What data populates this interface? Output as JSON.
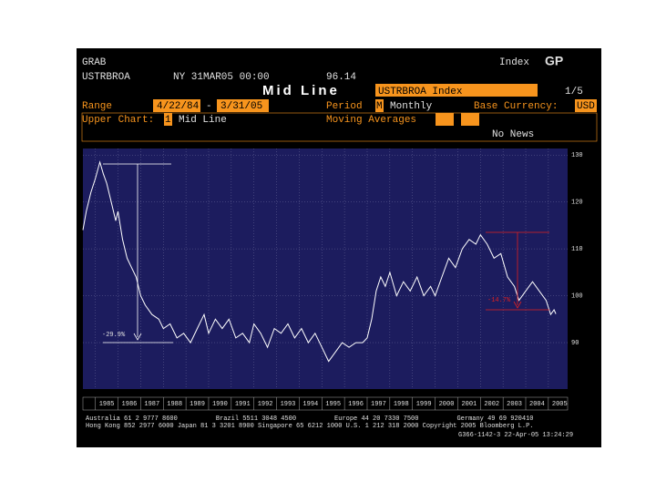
{
  "header": {
    "function": "GRAB",
    "security_type": "Index",
    "function_code": "GP",
    "ticker": "USTRBROA",
    "timestamp": "NY 31MAR05 00:00",
    "last": "96.14",
    "chart_name": "Mid Line",
    "security": "USTRBROA Index",
    "page": "1/5",
    "range_label": "Range",
    "range_start": "4/22/84",
    "range_sep": "-",
    "range_end": "3/31/05",
    "period_label": "Period",
    "period_code": "M",
    "period": "Monthly",
    "currency_label": "Base Currency:",
    "currency": "USD",
    "upper_label": "Upper Chart:",
    "upper_num": "1",
    "upper_name": "Mid Line",
    "ma_label": "Moving Averages",
    "news": "No News"
  },
  "footer": [
    "Australia 61 2 9777 8600          Brazil 5511 3048 4500          Europe 44 20 7330 7500          Germany 49 69 920410",
    "Hong Kong 852 2977 6000 Japan 81 3 3201 8900 Singapore 65 6212 1000 U.S. 1 212 318 2000 Copyright 2005 Bloomberg L.P.",
    "G366-1142-3 22-Apr-05 13:24:29"
  ],
  "chart_data": {
    "type": "line",
    "color": "#ffffff",
    "grid": true,
    "annotations": [
      "-29.9%",
      "-14.7%"
    ],
    "x": [
      1984.45,
      1984.6,
      1984.8,
      1985.0,
      1985.2,
      1985.35,
      1985.5,
      1985.7,
      1985.9,
      1986.0,
      1986.2,
      1986.4,
      1986.6,
      1986.8,
      1987.0,
      1987.2,
      1987.5,
      1987.8,
      1988.0,
      1988.3,
      1988.6,
      1988.9,
      1989.2,
      1989.5,
      1989.8,
      1990.0,
      1990.3,
      1990.6,
      1990.9,
      1991.2,
      1991.5,
      1991.8,
      1992.0,
      1992.3,
      1992.6,
      1992.9,
      1993.2,
      1993.5,
      1993.8,
      1994.1,
      1994.4,
      1994.7,
      1995.0,
      1995.3,
      1995.6,
      1995.9,
      1996.2,
      1996.5,
      1996.8,
      1997.0,
      1997.2,
      1997.4,
      1997.6,
      1997.8,
      1998.0,
      1998.3,
      1998.6,
      1998.9,
      1999.2,
      1999.5,
      1999.8,
      2000.0,
      2000.3,
      2000.6,
      2000.9,
      2001.2,
      2001.5,
      2001.8,
      2002.0,
      2002.3,
      2002.6,
      2002.9,
      2003.2,
      2003.5,
      2003.7,
      2004.0,
      2004.3,
      2004.6,
      2004.9,
      2005.1,
      2005.25,
      2005.33
    ],
    "values": [
      114,
      118,
      122,
      125,
      128.5,
      126,
      124,
      120,
      116,
      118,
      112,
      108,
      106,
      104,
      100,
      98,
      96,
      95,
      93,
      94,
      91,
      92,
      90,
      93,
      96,
      92,
      95,
      93,
      95,
      91,
      92,
      90,
      94,
      92,
      89,
      93,
      92,
      94,
      91,
      93,
      90,
      92,
      89,
      86,
      88,
      90,
      89,
      90,
      90,
      91,
      95,
      101,
      104,
      102,
      105,
      100,
      103,
      101,
      104,
      100,
      102,
      100,
      104,
      108,
      106,
      110,
      112,
      111,
      113,
      111,
      108,
      109,
      104,
      102,
      99,
      101,
      103,
      101,
      99,
      96,
      97,
      96.14
    ],
    "xlim": [
      1984.45,
      2005.85
    ],
    "xticks": [
      1985,
      1986,
      1987,
      1988,
      1989,
      1990,
      1991,
      1992,
      1993,
      1994,
      1995,
      1996,
      1997,
      1998,
      1999,
      2000,
      2001,
      2002,
      2003,
      2004,
      2005
    ],
    "ylim": [
      80.1,
      131.4
    ],
    "yticks": [
      90,
      100,
      110,
      120,
      130
    ]
  }
}
